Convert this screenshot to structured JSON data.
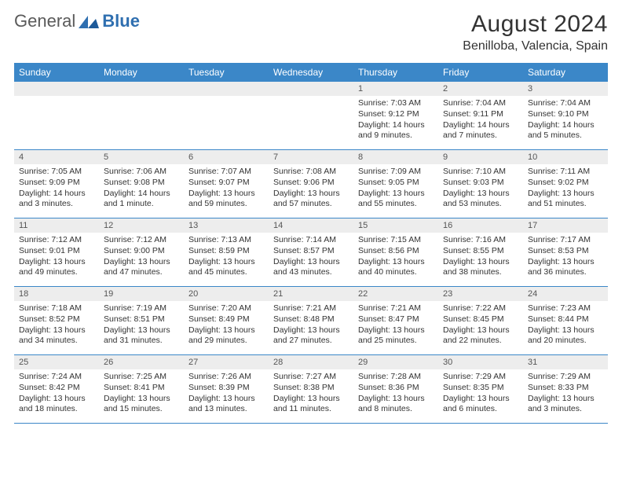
{
  "brand": {
    "part1": "General",
    "part2": "Blue"
  },
  "title": "August 2024",
  "location": "Benilloba, Valencia, Spain",
  "colors": {
    "header_bg": "#3b87c8",
    "header_text": "#ffffff",
    "band_bg": "#ededed",
    "rule": "#3b87c8",
    "text": "#333333"
  },
  "day_names": [
    "Sunday",
    "Monday",
    "Tuesday",
    "Wednesday",
    "Thursday",
    "Friday",
    "Saturday"
  ],
  "weeks": [
    [
      null,
      null,
      null,
      null,
      {
        "n": "1",
        "sunrise": "7:03 AM",
        "sunset": "9:12 PM",
        "daylight": "14 hours and 9 minutes."
      },
      {
        "n": "2",
        "sunrise": "7:04 AM",
        "sunset": "9:11 PM",
        "daylight": "14 hours and 7 minutes."
      },
      {
        "n": "3",
        "sunrise": "7:04 AM",
        "sunset": "9:10 PM",
        "daylight": "14 hours and 5 minutes."
      }
    ],
    [
      {
        "n": "4",
        "sunrise": "7:05 AM",
        "sunset": "9:09 PM",
        "daylight": "14 hours and 3 minutes."
      },
      {
        "n": "5",
        "sunrise": "7:06 AM",
        "sunset": "9:08 PM",
        "daylight": "14 hours and 1 minute."
      },
      {
        "n": "6",
        "sunrise": "7:07 AM",
        "sunset": "9:07 PM",
        "daylight": "13 hours and 59 minutes."
      },
      {
        "n": "7",
        "sunrise": "7:08 AM",
        "sunset": "9:06 PM",
        "daylight": "13 hours and 57 minutes."
      },
      {
        "n": "8",
        "sunrise": "7:09 AM",
        "sunset": "9:05 PM",
        "daylight": "13 hours and 55 minutes."
      },
      {
        "n": "9",
        "sunrise": "7:10 AM",
        "sunset": "9:03 PM",
        "daylight": "13 hours and 53 minutes."
      },
      {
        "n": "10",
        "sunrise": "7:11 AM",
        "sunset": "9:02 PM",
        "daylight": "13 hours and 51 minutes."
      }
    ],
    [
      {
        "n": "11",
        "sunrise": "7:12 AM",
        "sunset": "9:01 PM",
        "daylight": "13 hours and 49 minutes."
      },
      {
        "n": "12",
        "sunrise": "7:12 AM",
        "sunset": "9:00 PM",
        "daylight": "13 hours and 47 minutes."
      },
      {
        "n": "13",
        "sunrise": "7:13 AM",
        "sunset": "8:59 PM",
        "daylight": "13 hours and 45 minutes."
      },
      {
        "n": "14",
        "sunrise": "7:14 AM",
        "sunset": "8:57 PM",
        "daylight": "13 hours and 43 minutes."
      },
      {
        "n": "15",
        "sunrise": "7:15 AM",
        "sunset": "8:56 PM",
        "daylight": "13 hours and 40 minutes."
      },
      {
        "n": "16",
        "sunrise": "7:16 AM",
        "sunset": "8:55 PM",
        "daylight": "13 hours and 38 minutes."
      },
      {
        "n": "17",
        "sunrise": "7:17 AM",
        "sunset": "8:53 PM",
        "daylight": "13 hours and 36 minutes."
      }
    ],
    [
      {
        "n": "18",
        "sunrise": "7:18 AM",
        "sunset": "8:52 PM",
        "daylight": "13 hours and 34 minutes."
      },
      {
        "n": "19",
        "sunrise": "7:19 AM",
        "sunset": "8:51 PM",
        "daylight": "13 hours and 31 minutes."
      },
      {
        "n": "20",
        "sunrise": "7:20 AM",
        "sunset": "8:49 PM",
        "daylight": "13 hours and 29 minutes."
      },
      {
        "n": "21",
        "sunrise": "7:21 AM",
        "sunset": "8:48 PM",
        "daylight": "13 hours and 27 minutes."
      },
      {
        "n": "22",
        "sunrise": "7:21 AM",
        "sunset": "8:47 PM",
        "daylight": "13 hours and 25 minutes."
      },
      {
        "n": "23",
        "sunrise": "7:22 AM",
        "sunset": "8:45 PM",
        "daylight": "13 hours and 22 minutes."
      },
      {
        "n": "24",
        "sunrise": "7:23 AM",
        "sunset": "8:44 PM",
        "daylight": "13 hours and 20 minutes."
      }
    ],
    [
      {
        "n": "25",
        "sunrise": "7:24 AM",
        "sunset": "8:42 PM",
        "daylight": "13 hours and 18 minutes."
      },
      {
        "n": "26",
        "sunrise": "7:25 AM",
        "sunset": "8:41 PM",
        "daylight": "13 hours and 15 minutes."
      },
      {
        "n": "27",
        "sunrise": "7:26 AM",
        "sunset": "8:39 PM",
        "daylight": "13 hours and 13 minutes."
      },
      {
        "n": "28",
        "sunrise": "7:27 AM",
        "sunset": "8:38 PM",
        "daylight": "13 hours and 11 minutes."
      },
      {
        "n": "29",
        "sunrise": "7:28 AM",
        "sunset": "8:36 PM",
        "daylight": "13 hours and 8 minutes."
      },
      {
        "n": "30",
        "sunrise": "7:29 AM",
        "sunset": "8:35 PM",
        "daylight": "13 hours and 6 minutes."
      },
      {
        "n": "31",
        "sunrise": "7:29 AM",
        "sunset": "8:33 PM",
        "daylight": "13 hours and 3 minutes."
      }
    ]
  ],
  "labels": {
    "sunrise": "Sunrise:",
    "sunset": "Sunset:",
    "daylight": "Daylight:"
  }
}
